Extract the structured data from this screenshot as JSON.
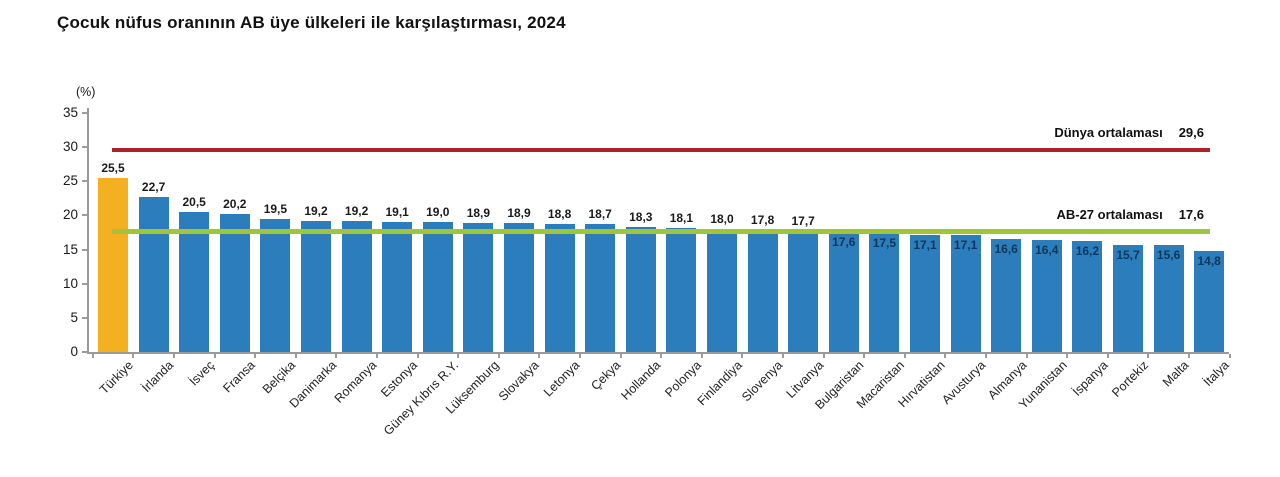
{
  "chart_data": {
    "type": "bar",
    "title": "Çocuk nüfus oranının AB üye ülkeleri ile karşılaştırması, 2024",
    "unit_label": "(%)",
    "xlabel": "",
    "ylabel": "(%)",
    "ylim": [
      0,
      35
    ],
    "yticks": [
      0,
      5,
      10,
      15,
      20,
      25,
      30,
      35
    ],
    "grid": false,
    "legend_position": "none",
    "categories": [
      "Türkiye",
      "İrlanda",
      "İsveç",
      "Fransa",
      "Belçika",
      "Danimarka",
      "Romanya",
      "Estonya",
      "Güney Kıbrıs R.Y.",
      "Lüksemburg",
      "Slovakya",
      "Letonya",
      "Çekya",
      "Hollanda",
      "Polonya",
      "Finlandiya",
      "Slovenya",
      "Litvanya",
      "Bulgaristan",
      "Macaristan",
      "Hırvatistan",
      "Avusturya",
      "Almanya",
      "Yunanistan",
      "İspanya",
      "Portekiz",
      "Malta",
      "İtalya"
    ],
    "values": [
      25.5,
      22.7,
      20.5,
      20.2,
      19.5,
      19.2,
      19.2,
      19.1,
      19.0,
      18.9,
      18.9,
      18.8,
      18.7,
      18.3,
      18.1,
      18.0,
      17.8,
      17.7,
      17.6,
      17.5,
      17.1,
      17.1,
      16.6,
      16.4,
      16.2,
      15.7,
      15.6,
      14.8
    ],
    "value_labels": [
      "25,5",
      "22,7",
      "20,5",
      "20,2",
      "19,5",
      "19,2",
      "19,2",
      "19,1",
      "19,0",
      "18,9",
      "18,9",
      "18,8",
      "18,7",
      "18,3",
      "18,1",
      "18,0",
      "17,8",
      "17,7",
      "17,6",
      "17,5",
      "17,1",
      "17,1",
      "16,6",
      "16,4",
      "16,2",
      "15,7",
      "15,6",
      "14,8"
    ],
    "highlight_category": "Türkiye",
    "highlight_index": 0,
    "reference_lines": [
      {
        "label": "Dünya ortalaması",
        "value": 29.6,
        "value_label": "29,6",
        "color": "#b02125",
        "thickness": 4
      },
      {
        "label": "AB-27 ortalaması",
        "value": 17.6,
        "value_label": "17,6",
        "color": "#9fc63b",
        "thickness": 5
      }
    ],
    "colors": {
      "bar": "#2b7dbc",
      "highlight_bar": "#f3b021",
      "inside_value_label": "#103759",
      "outside_value_label": "#1a1a1a",
      "axis": "#9a9a9a",
      "text": "#1a1a1a"
    }
  }
}
